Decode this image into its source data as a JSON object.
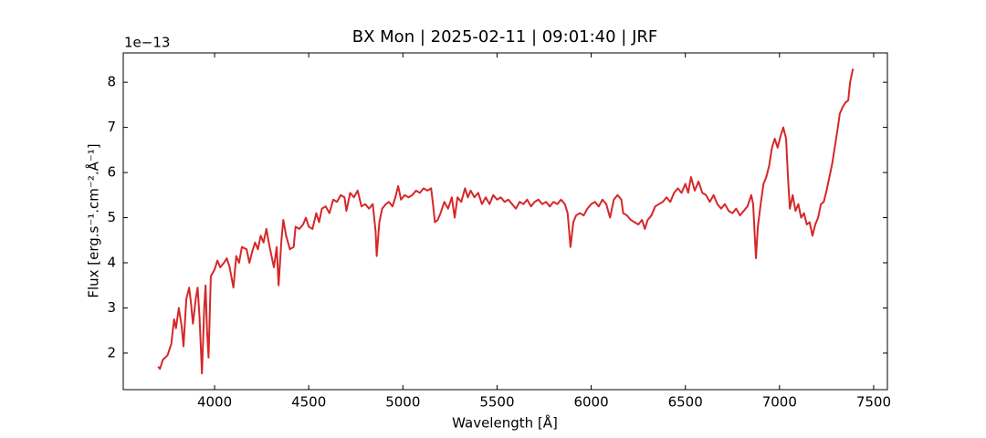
{
  "chart_data": {
    "type": "line",
    "title": "BX Mon | 2025-02-11 | 09:01:40 | JRF",
    "xlabel": "Wavelength [Å]",
    "ylabel": "Flux [erg.s⁻¹.cm⁻².Å⁻¹]",
    "y_offset_label": "1e−13",
    "xlim": [
      3515,
      7573
    ],
    "ylim": [
      1.19,
      8.65
    ],
    "xticks": [
      4000,
      4500,
      5000,
      5500,
      6000,
      6500,
      7000,
      7500
    ],
    "yticks": [
      2,
      3,
      4,
      5,
      6,
      7,
      8
    ],
    "ticks_direction": "in",
    "series": [
      {
        "color": "#d62728",
        "x": [
          3700,
          3710,
          3725,
          3750,
          3770,
          3785,
          3795,
          3810,
          3825,
          3835,
          3850,
          3865,
          3875,
          3885,
          3900,
          3910,
          3920,
          3933,
          3945,
          3952,
          3960,
          3968,
          3980,
          4000,
          4015,
          4030,
          4050,
          4065,
          4080,
          4100,
          4115,
          4130,
          4145,
          4170,
          4185,
          4200,
          4215,
          4230,
          4245,
          4260,
          4275,
          4290,
          4305,
          4315,
          4330,
          4340,
          4355,
          4365,
          4380,
          4400,
          4420,
          4430,
          4450,
          4470,
          4485,
          4500,
          4520,
          4540,
          4555,
          4570,
          4590,
          4610,
          4630,
          4650,
          4670,
          4690,
          4700,
          4720,
          4740,
          4760,
          4780,
          4800,
          4820,
          4840,
          4855,
          4861,
          4875,
          4890,
          4910,
          4925,
          4945,
          4960,
          4975,
          4990,
          5010,
          5030,
          5050,
          5070,
          5090,
          5110,
          5130,
          5150,
          5160,
          5170,
          5185,
          5200,
          5220,
          5240,
          5260,
          5275,
          5290,
          5310,
          5330,
          5345,
          5360,
          5380,
          5400,
          5420,
          5440,
          5460,
          5480,
          5500,
          5520,
          5540,
          5560,
          5580,
          5600,
          5620,
          5640,
          5660,
          5680,
          5700,
          5720,
          5740,
          5760,
          5780,
          5800,
          5820,
          5840,
          5860,
          5875,
          5890,
          5905,
          5920,
          5940,
          5960,
          5980,
          6000,
          6020,
          6040,
          6060,
          6080,
          6100,
          6120,
          6140,
          6160,
          6170,
          6190,
          6210,
          6230,
          6250,
          6270,
          6285,
          6300,
          6320,
          6340,
          6360,
          6380,
          6400,
          6420,
          6440,
          6460,
          6480,
          6500,
          6515,
          6530,
          6550,
          6570,
          6590,
          6610,
          6630,
          6650,
          6670,
          6690,
          6710,
          6730,
          6750,
          6770,
          6790,
          6810,
          6830,
          6850,
          6860,
          6870,
          6875,
          6885,
          6900,
          6915,
          6930,
          6945,
          6960,
          6975,
          6990,
          7005,
          7020,
          7035,
          7045,
          7055,
          7070,
          7085,
          7100,
          7115,
          7130,
          7145,
          7160,
          7175,
          7190,
          7205,
          7220,
          7235,
          7250,
          7265,
          7280,
          7295,
          7310,
          7320,
          7335,
          7350,
          7365,
          7375,
          7390
        ],
        "values": [
          1.7,
          1.65,
          1.85,
          1.95,
          2.2,
          2.75,
          2.55,
          3.0,
          2.6,
          2.15,
          3.2,
          3.45,
          3.1,
          2.65,
          3.2,
          3.45,
          2.8,
          1.55,
          3.0,
          3.5,
          2.5,
          1.9,
          3.7,
          3.85,
          4.05,
          3.9,
          4.0,
          4.1,
          3.9,
          3.45,
          4.15,
          4.0,
          4.35,
          4.3,
          4.0,
          4.25,
          4.45,
          4.3,
          4.6,
          4.45,
          4.75,
          4.4,
          4.1,
          3.9,
          4.35,
          3.5,
          4.5,
          4.95,
          4.6,
          4.3,
          4.35,
          4.8,
          4.75,
          4.85,
          5.0,
          4.8,
          4.75,
          5.1,
          4.9,
          5.2,
          5.25,
          5.1,
          5.4,
          5.35,
          5.5,
          5.45,
          5.15,
          5.55,
          5.45,
          5.6,
          5.25,
          5.3,
          5.2,
          5.3,
          4.7,
          4.15,
          4.9,
          5.2,
          5.3,
          5.35,
          5.25,
          5.45,
          5.7,
          5.4,
          5.5,
          5.45,
          5.5,
          5.6,
          5.55,
          5.65,
          5.6,
          5.65,
          5.3,
          4.9,
          4.95,
          5.1,
          5.35,
          5.2,
          5.45,
          5.0,
          5.45,
          5.35,
          5.65,
          5.45,
          5.6,
          5.45,
          5.55,
          5.3,
          5.45,
          5.3,
          5.5,
          5.4,
          5.45,
          5.35,
          5.4,
          5.3,
          5.2,
          5.35,
          5.3,
          5.4,
          5.25,
          5.35,
          5.4,
          5.3,
          5.35,
          5.25,
          5.35,
          5.3,
          5.4,
          5.3,
          5.1,
          4.35,
          4.9,
          5.05,
          5.1,
          5.05,
          5.2,
          5.3,
          5.35,
          5.25,
          5.4,
          5.3,
          5.0,
          5.4,
          5.5,
          5.4,
          5.1,
          5.05,
          4.95,
          4.9,
          4.85,
          4.95,
          4.75,
          4.95,
          5.05,
          5.25,
          5.3,
          5.35,
          5.45,
          5.35,
          5.55,
          5.65,
          5.55,
          5.75,
          5.55,
          5.9,
          5.6,
          5.8,
          5.55,
          5.5,
          5.35,
          5.5,
          5.3,
          5.2,
          5.3,
          5.15,
          5.1,
          5.2,
          5.05,
          5.15,
          5.25,
          5.5,
          5.3,
          4.5,
          4.1,
          4.8,
          5.3,
          5.75,
          5.9,
          6.15,
          6.55,
          6.75,
          6.55,
          6.8,
          7.0,
          6.75,
          5.9,
          5.2,
          5.5,
          5.15,
          5.3,
          5.0,
          5.1,
          4.85,
          4.9,
          4.6,
          4.85,
          5.0,
          5.3,
          5.35,
          5.6,
          5.9,
          6.2,
          6.6,
          7.0,
          7.3,
          7.45,
          7.55,
          7.6,
          8.0,
          8.3
        ]
      }
    ]
  }
}
